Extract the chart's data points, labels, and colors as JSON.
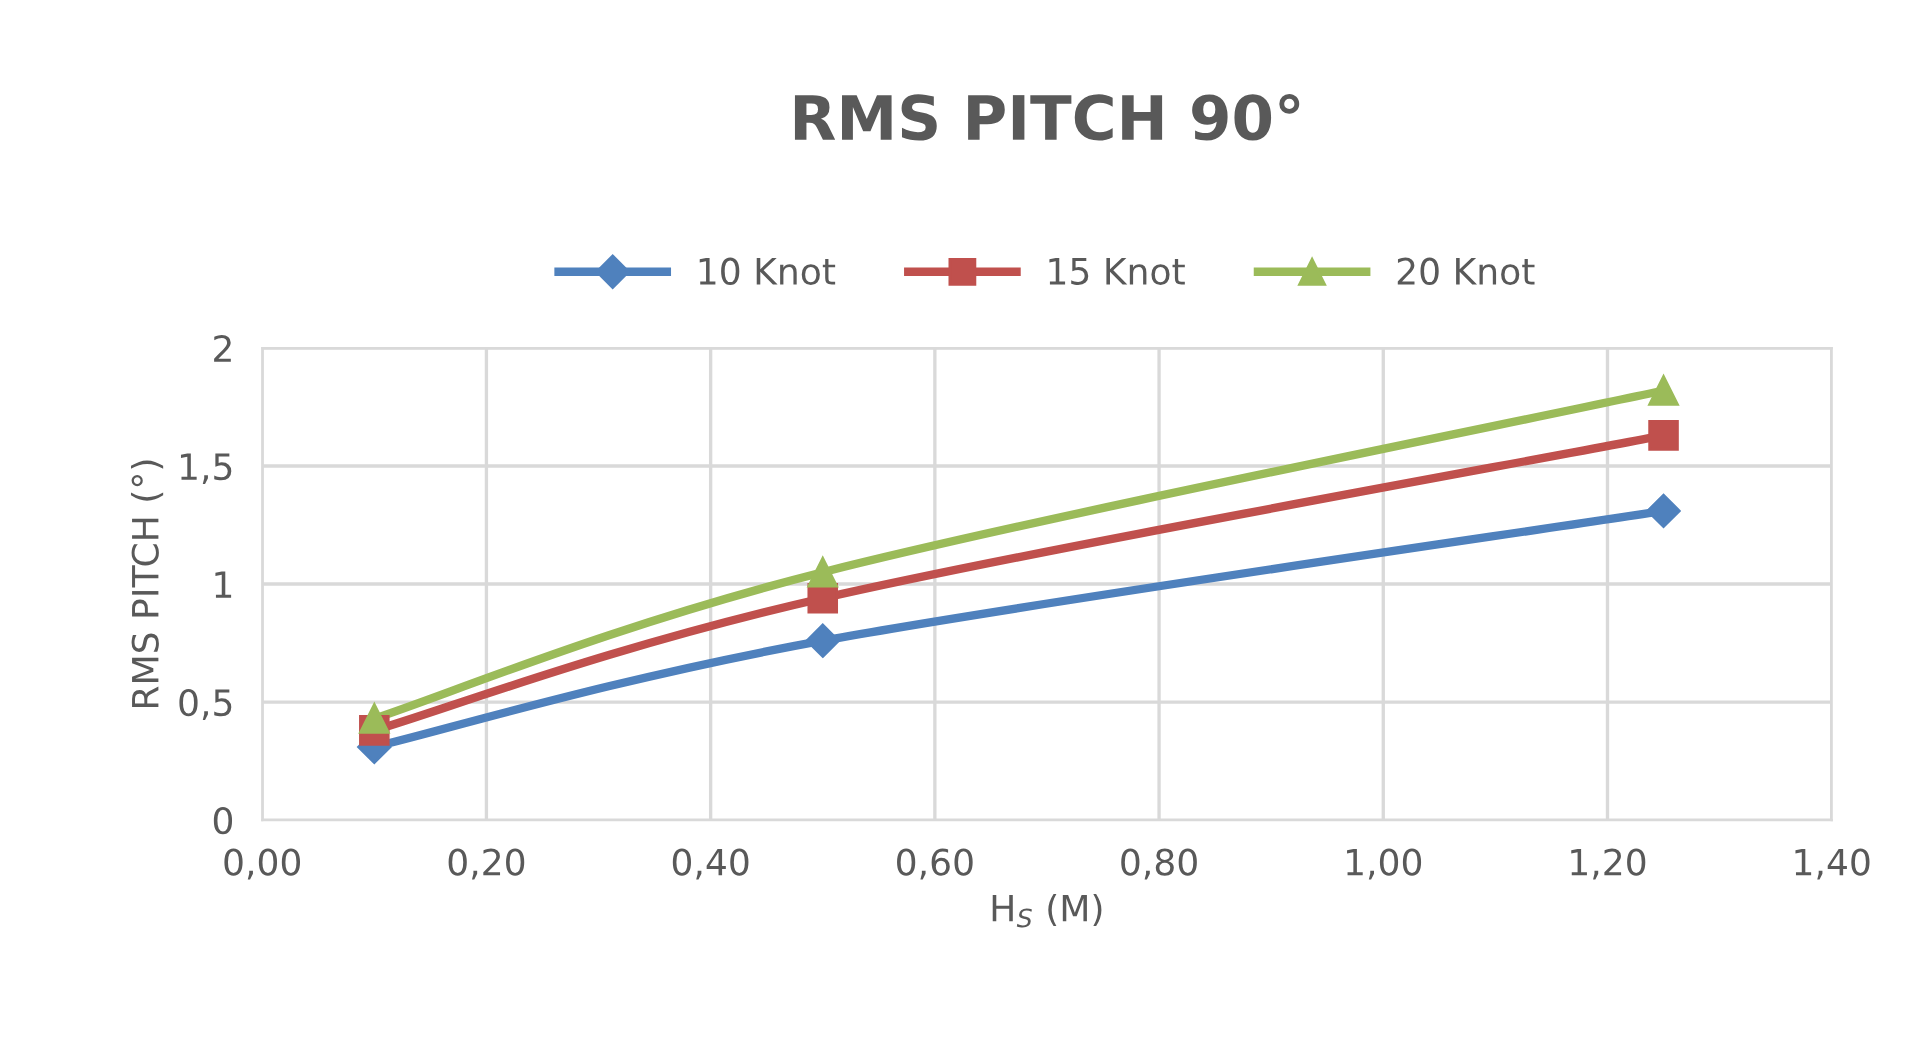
{
  "chart_data": {
    "type": "line",
    "title": "RMS PITCH 90°",
    "xlabel": "H$_{S}$ (M)",
    "ylabel": "RMS PITCH (°)",
    "x": [
      0.1,
      0.5,
      1.25
    ],
    "series": [
      {
        "name": "10 Knot",
        "color": "#4f81bd",
        "marker": "diamond",
        "values": [
          0.31,
          0.76,
          1.31
        ]
      },
      {
        "name": "15 Knot",
        "color": "#c0504d",
        "marker": "square",
        "values": [
          0.38,
          0.94,
          1.63
        ]
      },
      {
        "name": "20 Knot",
        "color": "#9bbb59",
        "marker": "triangle",
        "values": [
          0.43,
          1.05,
          1.82
        ]
      }
    ],
    "xlim": [
      0,
      1.4
    ],
    "xticks": [
      {
        "value": 0,
        "label": "0,00"
      },
      {
        "value": 0.2,
        "label": "0,20"
      },
      {
        "value": 0.4,
        "label": "0,40"
      },
      {
        "value": 0.6,
        "label": "0,60"
      },
      {
        "value": 0.8,
        "label": "0,80"
      },
      {
        "value": 1.0,
        "label": "1,00"
      },
      {
        "value": 1.2,
        "label": "1,20"
      },
      {
        "value": 1.4,
        "label": "1,40"
      }
    ],
    "ylim": [
      0,
      2
    ],
    "yticks": [
      0,
      {
        "value": 0.5,
        "label": "0,5"
      },
      1,
      {
        "value": 1.5,
        "label": "1,5"
      },
      2
    ],
    "grid": true,
    "legend": "top",
    "line_style": "solid"
  }
}
